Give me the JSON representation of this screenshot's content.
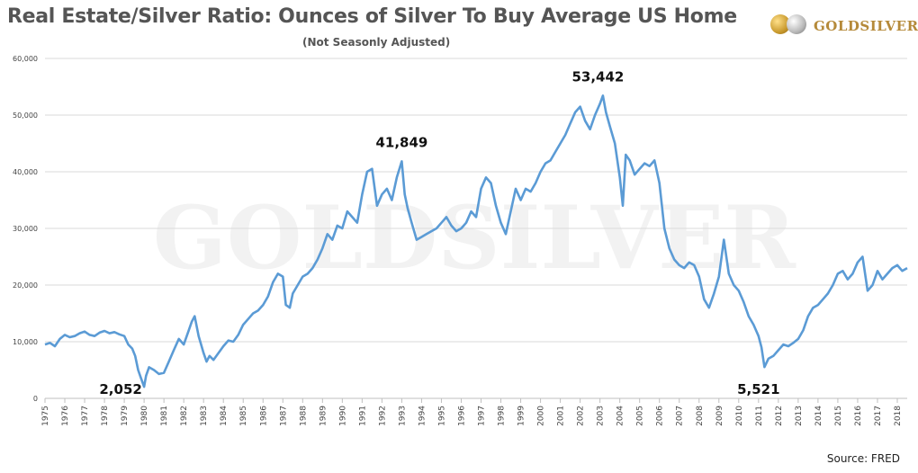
{
  "header": {
    "title": "Real Estate/Silver Ratio: Ounces of Silver To Buy Average US Home",
    "subtitle": "(Not Seasonly Adjusted)"
  },
  "logo": {
    "text": "GOLDSILVER",
    "icon": "gold-silver-coins-icon",
    "color": "#b58a3a"
  },
  "watermark": {
    "text": "GOLDSILVER"
  },
  "source": "Source: FRED",
  "colors": {
    "line": "#5b9bd5",
    "grid": "#d9d9d9",
    "title": "#555555"
  },
  "chart_data": {
    "type": "line",
    "title": "Real Estate/Silver Ratio: Ounces of Silver To Buy Average US Home",
    "xlabel": "",
    "ylabel": "",
    "ylim": [
      0,
      60000
    ],
    "yticks": [
      0,
      10000,
      20000,
      30000,
      40000,
      50000,
      60000
    ],
    "ytick_labels": [
      "0",
      "10,000",
      "20,000",
      "30,000",
      "40,000",
      "50,000",
      "60,000"
    ],
    "xlim": [
      1975,
      2018.5
    ],
    "xticks": [
      1975,
      1976,
      1977,
      1978,
      1979,
      1980,
      1981,
      1982,
      1983,
      1984,
      1985,
      1986,
      1987,
      1988,
      1989,
      1990,
      1991,
      1992,
      1993,
      1994,
      1995,
      1996,
      1997,
      1998,
      1999,
      2000,
      2001,
      2002,
      2003,
      2004,
      2005,
      2006,
      2007,
      2008,
      2009,
      2010,
      2011,
      2012,
      2013,
      2014,
      2015,
      2016,
      2017,
      2018
    ],
    "grid": "horizontal",
    "legend": "none",
    "series": [
      {
        "x": [
          1975.0,
          1975.25,
          1975.5,
          1975.75,
          1976.0,
          1976.25,
          1976.5,
          1976.75,
          1977.0,
          1977.25,
          1977.5,
          1977.75,
          1978.0,
          1978.25,
          1978.5,
          1978.75,
          1979.0,
          1979.2,
          1979.4,
          1979.55,
          1979.7,
          1979.85,
          1980.0,
          1980.1,
          1980.25,
          1980.5,
          1980.75,
          1981.0,
          1981.25,
          1981.5,
          1981.75,
          1982.0,
          1982.25,
          1982.4,
          1982.55,
          1982.75,
          1983.0,
          1983.15,
          1983.3,
          1983.5,
          1983.75,
          1984.0,
          1984.25,
          1984.5,
          1984.75,
          1985.0,
          1985.25,
          1985.5,
          1985.75,
          1986.0,
          1986.25,
          1986.5,
          1986.75,
          1987.0,
          1987.15,
          1987.35,
          1987.5,
          1987.75,
          1988.0,
          1988.25,
          1988.5,
          1988.75,
          1989.0,
          1989.25,
          1989.5,
          1989.75,
          1990.0,
          1990.25,
          1990.5,
          1990.75,
          1991.0,
          1991.25,
          1991.5,
          1991.75,
          1992.0,
          1992.25,
          1992.5,
          1992.75,
          1993.0,
          1993.15,
          1993.3,
          1993.5,
          1993.75,
          1994.0,
          1994.25,
          1994.5,
          1994.75,
          1995.0,
          1995.25,
          1995.5,
          1995.75,
          1996.0,
          1996.25,
          1996.5,
          1996.75,
          1997.0,
          1997.25,
          1997.5,
          1997.75,
          1998.0,
          1998.25,
          1998.5,
          1998.75,
          1999.0,
          1999.25,
          1999.5,
          1999.75,
          2000.0,
          2000.25,
          2000.5,
          2000.75,
          2001.0,
          2001.25,
          2001.5,
          2001.75,
          2002.0,
          2002.25,
          2002.5,
          2002.75,
          2003.0,
          2003.15,
          2003.3,
          2003.5,
          2003.75,
          2004.0,
          2004.15,
          2004.3,
          2004.5,
          2004.75,
          2005.0,
          2005.25,
          2005.5,
          2005.75,
          2006.0,
          2006.25,
          2006.5,
          2006.75,
          2007.0,
          2007.25,
          2007.5,
          2007.75,
          2008.0,
          2008.25,
          2008.5,
          2008.75,
          2009.0,
          2009.25,
          2009.5,
          2009.75,
          2010.0,
          2010.25,
          2010.5,
          2010.75,
          2011.0,
          2011.15,
          2011.3,
          2011.5,
          2011.75,
          2012.0,
          2012.25,
          2012.5,
          2012.75,
          2013.0,
          2013.25,
          2013.5,
          2013.75,
          2014.0,
          2014.25,
          2014.5,
          2014.75,
          2015.0,
          2015.25,
          2015.5,
          2015.75,
          2016.0,
          2016.25,
          2016.5,
          2016.75,
          2017.0,
          2017.25,
          2017.5,
          2017.75,
          2018.0,
          2018.25,
          2018.5
        ],
        "values": [
          9500,
          9800,
          9200,
          10500,
          11200,
          10800,
          11000,
          11500,
          11800,
          11200,
          11000,
          11600,
          11900,
          11500,
          11700,
          11300,
          11000,
          9500,
          8800,
          7500,
          5000,
          3500,
          2052,
          4000,
          5500,
          5000,
          4300,
          4500,
          6500,
          8500,
          10500,
          9500,
          12000,
          13500,
          14500,
          11000,
          8000,
          6500,
          7500,
          6800,
          8000,
          9200,
          10200,
          10000,
          11200,
          13000,
          14000,
          15000,
          15500,
          16500,
          18000,
          20500,
          22000,
          21500,
          16500,
          16000,
          18500,
          20000,
          21500,
          22000,
          23000,
          24500,
          26500,
          29000,
          28000,
          30500,
          30000,
          33000,
          32000,
          31000,
          36000,
          40000,
          40500,
          34000,
          36000,
          37000,
          35000,
          39000,
          41849,
          36000,
          33500,
          31000,
          28000,
          28500,
          29000,
          29500,
          30000,
          31000,
          32000,
          30500,
          29500,
          30000,
          31000,
          33000,
          32000,
          37000,
          39000,
          38000,
          34000,
          31000,
          29000,
          33000,
          37000,
          35000,
          37000,
          36500,
          38000,
          40000,
          41500,
          42000,
          43500,
          45000,
          46500,
          48500,
          50500,
          51500,
          49000,
          47500,
          50000,
          52000,
          53442,
          50500,
          48000,
          45000,
          39000,
          34000,
          43000,
          42000,
          39500,
          40500,
          41500,
          41000,
          42000,
          38000,
          30000,
          26500,
          24500,
          23500,
          23000,
          24000,
          23500,
          21500,
          17500,
          16000,
          18500,
          21500,
          28000,
          22000,
          20000,
          19000,
          17000,
          14500,
          13000,
          11000,
          9000,
          5521,
          7000,
          7500,
          8500,
          9500,
          9200,
          9800,
          10500,
          12000,
          14500,
          16000,
          16500,
          17500,
          18500,
          20000,
          22000,
          22500,
          21000,
          22000,
          24000,
          25000,
          19000,
          20000,
          22500,
          21000,
          22000,
          23000,
          23500,
          22500,
          23000
        ]
      }
    ],
    "annotations": [
      {
        "x": 2002.9,
        "y": 53442,
        "label": "53,442"
      },
      {
        "x": 1993.0,
        "y": 41849,
        "label": "41,849"
      },
      {
        "x": 1980.0,
        "y": 2052,
        "label": "2,052"
      },
      {
        "x": 2011.0,
        "y": 5521,
        "label": "5,521"
      }
    ]
  }
}
